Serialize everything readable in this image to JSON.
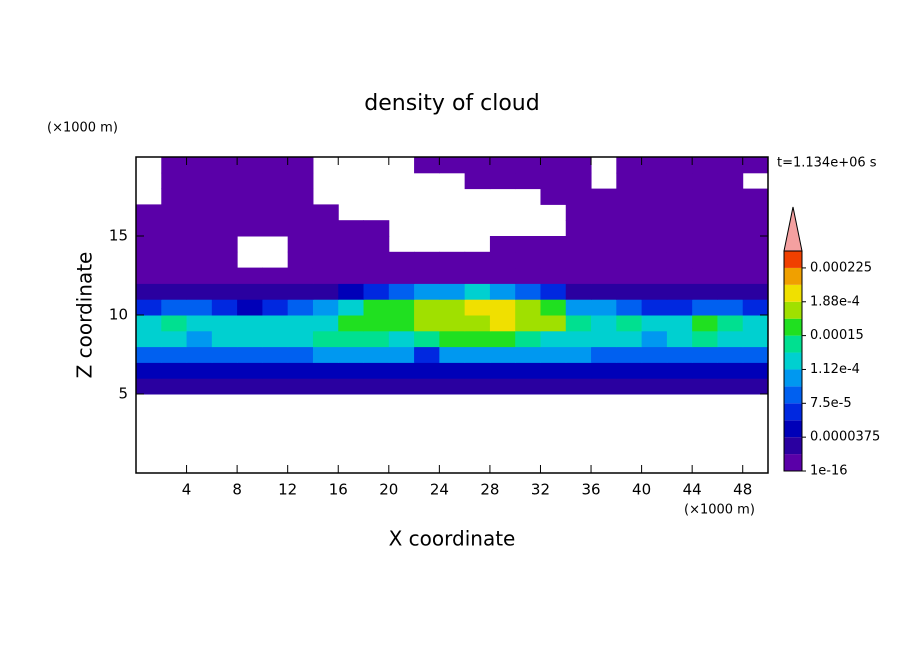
{
  "chart_data": {
    "type": "heatmap",
    "title": "density of cloud",
    "xlabel": "X coordinate",
    "ylabel": "Z coordinate",
    "x_unit": "(×1000 m)",
    "y_unit": "(×1000 m)",
    "time_label": "t=1.134e+06 s",
    "xlim": [
      0,
      50
    ],
    "ylim": [
      0,
      20
    ],
    "xticks": [
      4,
      8,
      12,
      16,
      20,
      24,
      28,
      32,
      36,
      40,
      44,
      48
    ],
    "yticks": [
      5,
      10,
      15
    ],
    "x": [
      1,
      3,
      5,
      7,
      9,
      11,
      13,
      15,
      17,
      19,
      21,
      23,
      25,
      27,
      29,
      31,
      33,
      35,
      37,
      39,
      41,
      43,
      45,
      47,
      49
    ],
    "y": [
      0.5,
      1.5,
      2.5,
      3.5,
      4.5,
      5.5,
      6.5,
      7.5,
      8.5,
      9.5,
      10.5,
      11.5,
      12.5,
      13.5,
      14.5,
      15.5,
      16.5,
      17.5,
      18.5,
      19.5
    ],
    "z": [
      [
        null,
        null,
        null,
        null,
        null,
        null,
        null,
        null,
        null,
        null,
        null,
        null,
        null,
        null,
        null,
        null,
        null,
        null,
        null,
        null,
        null,
        null,
        null,
        null,
        null
      ],
      [
        null,
        null,
        null,
        null,
        null,
        null,
        null,
        null,
        null,
        null,
        null,
        null,
        null,
        null,
        null,
        null,
        null,
        null,
        null,
        null,
        null,
        null,
        null,
        null,
        null
      ],
      [
        null,
        null,
        null,
        null,
        null,
        null,
        null,
        null,
        null,
        null,
        null,
        null,
        null,
        null,
        null,
        null,
        null,
        null,
        null,
        null,
        null,
        null,
        null,
        null,
        null
      ],
      [
        null,
        null,
        null,
        null,
        null,
        null,
        null,
        null,
        null,
        null,
        null,
        null,
        null,
        null,
        null,
        null,
        null,
        null,
        null,
        null,
        null,
        null,
        null,
        null,
        null
      ],
      [
        null,
        null,
        null,
        null,
        null,
        null,
        null,
        null,
        null,
        null,
        null,
        null,
        null,
        null,
        null,
        null,
        null,
        null,
        null,
        null,
        null,
        null,
        null,
        null,
        null
      ],
      [
        2e-05,
        2e-05,
        2e-05,
        2e-05,
        2e-05,
        2e-05,
        2e-05,
        2e-05,
        2e-05,
        2e-05,
        2e-05,
        2e-05,
        2e-05,
        2e-05,
        2e-05,
        2e-05,
        2e-05,
        2e-05,
        2e-05,
        2e-05,
        2e-05,
        2e-05,
        2e-05,
        2e-05,
        2e-05
      ],
      [
        5e-05,
        5e-05,
        4e-05,
        5e-05,
        5e-05,
        5e-05,
        5e-05,
        5e-05,
        5e-05,
        5e-05,
        5e-05,
        4e-05,
        5e-05,
        5e-05,
        5e-05,
        5e-05,
        5e-05,
        5e-05,
        5e-05,
        5e-05,
        5e-05,
        5e-05,
        5e-05,
        5e-05,
        5e-05
      ],
      [
        9e-05,
        9e-05,
        9e-05,
        9e-05,
        9e-05,
        9e-05,
        9e-05,
        0.0001,
        0.0001,
        0.0001,
        0.0001,
        7e-05,
        0.0001,
        0.0001,
        0.0001,
        0.0001,
        0.0001,
        0.0001,
        9e-05,
        9e-05,
        9e-05,
        9e-05,
        9e-05,
        9e-05,
        9e-05
      ],
      [
        0.00012,
        0.00013,
        0.00011,
        0.00012,
        0.00012,
        0.00013,
        0.00013,
        0.00014,
        0.00014,
        0.00014,
        0.00013,
        0.00014,
        0.00015,
        0.00015,
        0.00015,
        0.00014,
        0.00013,
        0.00012,
        0.00012,
        0.00013,
        0.00011,
        0.00013,
        0.00014,
        0.00013,
        0.00012
      ],
      [
        0.00013,
        0.00014,
        0.00013,
        0.00013,
        0.00012,
        0.00013,
        0.00012,
        0.00013,
        0.00015,
        0.00016,
        0.00016,
        0.00017,
        0.00017,
        0.00018,
        0.00019,
        0.00018,
        0.00017,
        0.00014,
        0.00013,
        0.00014,
        0.00012,
        0.00013,
        0.00015,
        0.00014,
        0.00013
      ],
      [
        6e-05,
        9e-05,
        8e-05,
        6e-05,
        5e-05,
        6e-05,
        8e-05,
        0.0001,
        0.00013,
        0.00015,
        0.00016,
        0.00017,
        0.00018,
        0.00019,
        0.00019,
        0.00018,
        0.00016,
        0.0001,
        0.0001,
        8e-05,
        6e-05,
        7e-05,
        9e-05,
        8e-05,
        6e-05
      ],
      [
        2e-05,
        2e-05,
        2e-05,
        2e-05,
        2e-05,
        2e-05,
        2e-05,
        3e-05,
        4e-05,
        6e-05,
        8e-05,
        0.0001,
        0.00011,
        0.00012,
        0.00011,
        9e-05,
        6e-05,
        3e-05,
        2e-05,
        2e-05,
        2e-05,
        2e-05,
        2e-05,
        2e-05,
        2e-05
      ],
      [
        1e-16,
        1e-16,
        1e-16,
        1e-16,
        1e-16,
        1e-16,
        1e-16,
        1e-16,
        1e-16,
        1e-16,
        1e-16,
        1e-16,
        1e-16,
        1e-16,
        1e-16,
        1e-16,
        1e-16,
        1e-16,
        1e-16,
        1e-16,
        1e-16,
        1e-16,
        1e-16,
        1e-16,
        1e-16
      ],
      [
        1e-16,
        1e-16,
        1e-16,
        1e-16,
        null,
        null,
        1e-16,
        1e-16,
        1e-16,
        1e-16,
        1e-16,
        1e-16,
        1e-16,
        1e-16,
        1e-16,
        1e-16,
        1e-16,
        1e-16,
        1e-16,
        1e-16,
        1e-16,
        1e-16,
        1e-16,
        1e-16,
        1e-16
      ],
      [
        1e-05,
        1e-05,
        1e-05,
        1e-05,
        null,
        null,
        1e-16,
        1e-16,
        1e-16,
        1e-16,
        null,
        null,
        null,
        null,
        1e-16,
        1e-16,
        1e-16,
        1e-16,
        1e-16,
        1e-16,
        1e-16,
        1e-16,
        1e-16,
        1e-16,
        1e-16
      ],
      [
        1e-16,
        1e-16,
        1e-16,
        1e-16,
        1e-16,
        1e-16,
        1e-16,
        1e-16,
        1e-16,
        1e-16,
        null,
        null,
        null,
        null,
        null,
        null,
        null,
        1e-16,
        1e-16,
        1e-16,
        1e-16,
        1e-16,
        1e-16,
        1e-16,
        1e-16
      ],
      [
        1e-16,
        1e-16,
        1e-16,
        1e-16,
        1e-16,
        1e-16,
        1e-16,
        1e-16,
        null,
        null,
        null,
        null,
        null,
        null,
        null,
        null,
        null,
        1e-16,
        1e-16,
        1e-16,
        1e-16,
        1e-16,
        1e-16,
        1e-16,
        1e-16
      ],
      [
        null,
        1e-16,
        1e-16,
        1e-16,
        1e-16,
        1e-16,
        1e-16,
        null,
        null,
        null,
        null,
        null,
        null,
        null,
        null,
        null,
        1e-16,
        1e-16,
        1e-16,
        1e-16,
        1e-16,
        1e-16,
        1e-16,
        1e-16,
        1e-16
      ],
      [
        null,
        1e-16,
        1e-16,
        1e-16,
        1e-16,
        1e-16,
        1e-16,
        null,
        null,
        null,
        null,
        null,
        null,
        1e-16,
        1e-16,
        1e-16,
        1e-16,
        1e-16,
        null,
        1e-16,
        1e-16,
        1e-16,
        1e-16,
        1e-16,
        null
      ],
      [
        null,
        1e-16,
        1e-16,
        1e-16,
        1e-16,
        1e-16,
        1e-16,
        null,
        null,
        null,
        null,
        1e-16,
        1e-16,
        1e-16,
        1e-16,
        1e-16,
        1e-16,
        1e-16,
        null,
        1e-16,
        1e-16,
        1e-16,
        1e-16,
        1e-16,
        1e-16
      ]
    ],
    "levels": [
      1e-16,
      1.875e-05,
      3.75e-05,
      5.625e-05,
      7.5e-05,
      9.375e-05,
      0.0001125,
      0.00013125,
      0.00015,
      0.00016875,
      0.0001875,
      0.00020625,
      0.000225,
      0.00024375
    ],
    "colors": [
      "#5a00a8",
      "#2a00a0",
      "#0000b8",
      "#0028e0",
      "#0060f0",
      "#0098f0",
      "#00d0d0",
      "#00e090",
      "#20e020",
      "#a0e000",
      "#f0e000",
      "#f0a000",
      "#f04000"
    ],
    "extend_color": "#f4a0a0",
    "colorbar_ticks": [
      1e-16,
      3.75e-05,
      {
        "value": 7.5e-05,
        "label": "7.5e-5"
      },
      {
        "value": 0.0001125,
        "label": "1.12e-4"
      },
      0.00015,
      {
        "value": 0.0001875,
        "label": "1.88e-4"
      },
      0.000225
    ]
  }
}
